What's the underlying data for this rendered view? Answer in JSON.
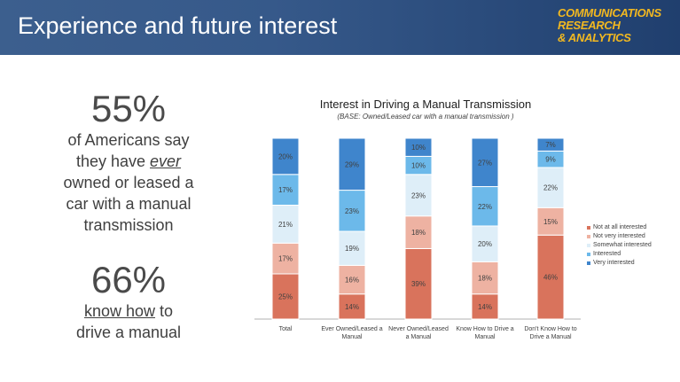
{
  "header": {
    "title": "Experience and future interest",
    "logo_lines": [
      "COMMUNICATIONS",
      "RESEARCH",
      "& ANALYTICS"
    ]
  },
  "stat1": {
    "value": "55%",
    "line1": "of Americans say",
    "line2a": "they have ",
    "line2b": "ever",
    "line3": "owned or leased a",
    "line4": "car with a manual",
    "line5": "transmission"
  },
  "stat2": {
    "value": "66%",
    "line1a": "know how",
    "line1b": " to",
    "line2": "drive a manual"
  },
  "chart_data": {
    "type": "bar",
    "stacked": true,
    "percent_stacked": true,
    "title": "Interest in Driving a Manual Transmission",
    "subtitle": "(BASE: Owned/Leased car with a manual transmission )",
    "categories": [
      [
        "Total"
      ],
      [
        "Ever Owned/Leased a",
        "Manual"
      ],
      [
        "Never Owned/Leased",
        "a Manual"
      ],
      [
        "Know How to Drive a",
        "Manual"
      ],
      [
        "Don't Know How to",
        "Drive a Manual"
      ]
    ],
    "series": [
      {
        "name": "Not at all interested",
        "color": "#d9735c",
        "values": [
          25,
          14,
          39,
          14,
          46
        ]
      },
      {
        "name": "Not very interested",
        "color": "#eeb2a2",
        "values": [
          17,
          16,
          18,
          18,
          15
        ]
      },
      {
        "name": "Somewhat interested",
        "color": "#deeef8",
        "values": [
          21,
          19,
          23,
          20,
          22
        ]
      },
      {
        "name": "Interested",
        "color": "#6cb9ea",
        "values": [
          17,
          23,
          10,
          22,
          9
        ]
      },
      {
        "name": "Very interested",
        "color": "#3f85cc",
        "values": [
          20,
          29,
          10,
          27,
          7
        ]
      }
    ],
    "legend_position": "right",
    "grid": false
  }
}
